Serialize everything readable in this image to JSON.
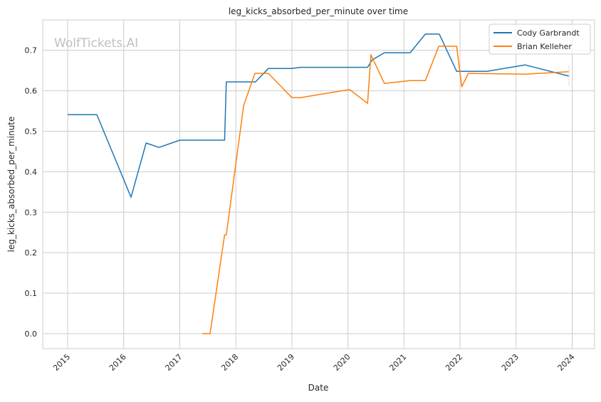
{
  "chart_data": {
    "type": "line",
    "title": "leg_kicks_absorbed_per_minute over time",
    "xlabel": "Date",
    "ylabel": "leg_kicks_absorbed_per_minute",
    "watermark": "WolfTickets.AI",
    "xlim": [
      2014.555,
      2024.4
    ],
    "ylim": [
      -0.037,
      0.775
    ],
    "xticks": [
      2015,
      2016,
      2017,
      2018,
      2019,
      2020,
      2021,
      2022,
      2023,
      2024
    ],
    "xtick_labels": [
      "2015",
      "2016",
      "2017",
      "2018",
      "2019",
      "2020",
      "2021",
      "2022",
      "2023",
      "2024"
    ],
    "yticks": [
      0.0,
      0.1,
      0.2,
      0.3,
      0.4,
      0.5,
      0.6,
      0.7
    ],
    "ytick_labels": [
      "0.0",
      "0.1",
      "0.2",
      "0.3",
      "0.4",
      "0.5",
      "0.6",
      "0.7"
    ],
    "grid": true,
    "legend_position": "top-right",
    "series": [
      {
        "name": "Cody Garbrandt",
        "color": "#1f77b4",
        "x": [
          2015.0,
          2015.52,
          2016.13,
          2016.4,
          2016.63,
          2017.0,
          2017.8,
          2017.83,
          2018.35,
          2018.58,
          2019.0,
          2019.15,
          2020.35,
          2020.43,
          2020.65,
          2021.11,
          2021.38,
          2021.63,
          2021.94,
          2022.48,
          2023.16,
          2023.95
        ],
        "y": [
          0.541,
          0.541,
          0.337,
          0.471,
          0.46,
          0.478,
          0.478,
          0.622,
          0.622,
          0.655,
          0.655,
          0.658,
          0.658,
          0.676,
          0.694,
          0.694,
          0.74,
          0.74,
          0.648,
          0.648,
          0.664,
          0.636
        ]
      },
      {
        "name": "Brian Kelleher",
        "color": "#ff7f0e",
        "x": [
          2017.4,
          2017.54,
          2017.8,
          2017.83,
          2018.14,
          2018.34,
          2018.58,
          2019.0,
          2019.15,
          2020.03,
          2020.35,
          2020.41,
          2020.65,
          2021.11,
          2021.38,
          2021.62,
          2021.94,
          2022.03,
          2022.15,
          2023.16,
          2023.95
        ],
        "y": [
          0.0,
          0.0,
          0.244,
          0.244,
          0.564,
          0.643,
          0.643,
          0.583,
          0.583,
          0.603,
          0.569,
          0.689,
          0.618,
          0.625,
          0.625,
          0.71,
          0.71,
          0.61,
          0.643,
          0.641,
          0.647
        ]
      }
    ]
  }
}
